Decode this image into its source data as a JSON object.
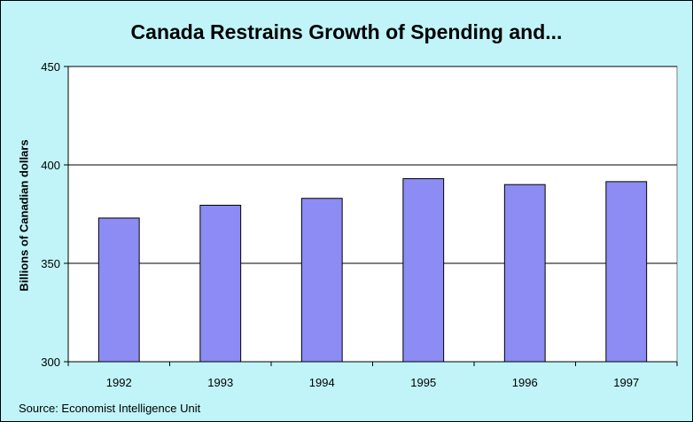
{
  "chart_data": {
    "type": "bar",
    "title": "Canada Restrains Growth of Spending and...",
    "ylabel": "Billions of Canadian dollars",
    "xlabel": "",
    "categories": [
      "1992",
      "1993",
      "1994",
      "1995",
      "1996",
      "1997"
    ],
    "values": [
      373,
      379.5,
      383,
      393,
      390,
      391.5
    ],
    "ylim": [
      300,
      450
    ],
    "yticks": [
      300,
      350,
      400,
      450
    ],
    "grid": true,
    "legend": "none",
    "source": "Source: Economist Intelligence Unit"
  },
  "colors": {
    "background": "#c0f4f8",
    "plot_area": "#ffffff",
    "bar_fill": "#8c8cf4",
    "bar_stroke": "#000000",
    "gridline": "#000000"
  }
}
